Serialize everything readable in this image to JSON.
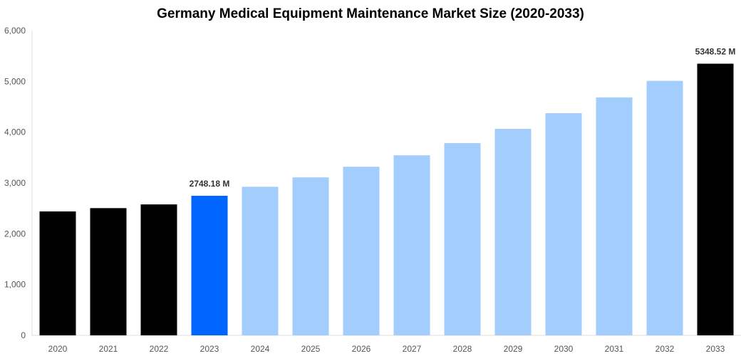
{
  "chart_data": {
    "type": "bar",
    "title": "Germany Medical Equipment Maintenance Market Size (2020-2033)",
    "xlabel": "",
    "ylabel": "",
    "ylim": [
      0,
      6000
    ],
    "yticks": [
      "0",
      "1,000",
      "2,000",
      "3,000",
      "4,000",
      "5,000",
      "6,000"
    ],
    "grid": false,
    "categories": [
      "2020",
      "2021",
      "2022",
      "2023",
      "2024",
      "2025",
      "2026",
      "2027",
      "2028",
      "2029",
      "2030",
      "2031",
      "2032",
      "2033"
    ],
    "values": [
      2440,
      2505,
      2578,
      2748.18,
      2925,
      3110,
      3320,
      3545,
      3785,
      4065,
      4375,
      4685,
      5010,
      5348.52
    ],
    "colors": [
      "#000000",
      "#000000",
      "#000000",
      "#0066ff",
      "#a2cdfd",
      "#a2cdfd",
      "#a2cdfd",
      "#a2cdfd",
      "#a2cdfd",
      "#a2cdfd",
      "#a2cdfd",
      "#a2cdfd",
      "#a2cdfd",
      "#000000"
    ],
    "data_labels": {
      "2023": "2748.18 M",
      "2033": "5348.52 M"
    }
  }
}
